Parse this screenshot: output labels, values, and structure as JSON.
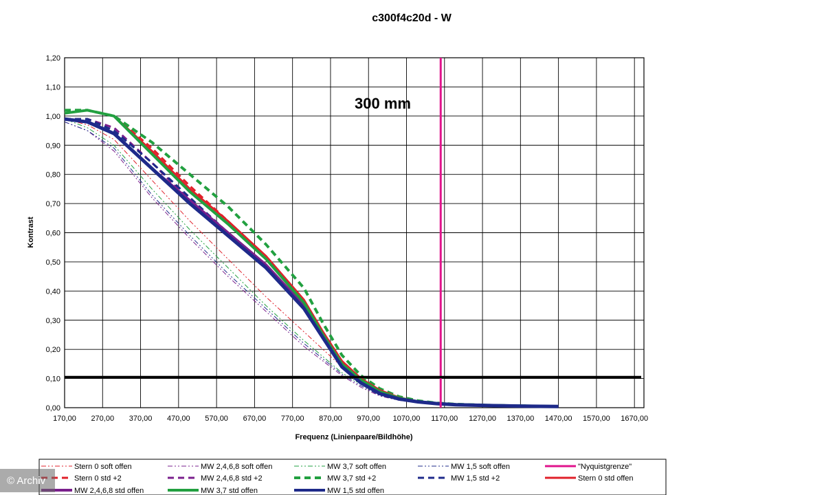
{
  "chart_data": {
    "type": "line",
    "title": "c300f4c20d - W",
    "xlabel": "Frequenz (Linienpaare/Bildhöhe)",
    "ylabel": "Kontrast",
    "xlim": [
      170,
      1695
    ],
    "ylim": [
      0,
      1.2
    ],
    "x_ticks": [
      "170,00",
      "270,00",
      "370,00",
      "470,00",
      "570,00",
      "670,00",
      "770,00",
      "870,00",
      "970,00",
      "1070,00",
      "1170,00",
      "1270,00",
      "1370,00",
      "1470,00",
      "1570,00",
      "1670,00"
    ],
    "y_ticks": [
      "0,00",
      "0,10",
      "0,20",
      "0,30",
      "0,40",
      "0,50",
      "0,60",
      "0,70",
      "0,80",
      "0,90",
      "1,00",
      "1,10",
      "1,20"
    ],
    "grid": true,
    "annotation": "300 mm",
    "legend_position": "bottom",
    "reference_lines": [
      {
        "name": "\"Nyquistgrenze\"",
        "orientation": "vertical",
        "value": 1160,
        "color": "#e0148c"
      },
      {
        "orientation": "horizontal",
        "value": 0.105,
        "color": "#000000"
      }
    ],
    "series": [
      {
        "name": "Stern 0 soft offen",
        "color": "#e0202a",
        "style": "dashdotdot",
        "width": 1,
        "x": [
          170,
          230,
          300,
          400,
          500,
          600,
          700,
          800,
          900,
          950,
          1000,
          1050,
          1100,
          1150,
          1200,
          1300,
          1400,
          1470
        ],
        "y": [
          0.99,
          0.97,
          0.92,
          0.78,
          0.64,
          0.51,
          0.38,
          0.26,
          0.14,
          0.09,
          0.05,
          0.03,
          0.02,
          0.012,
          0.01,
          0.007,
          0.005,
          0.004
        ]
      },
      {
        "name": "MW 2,4,6,8 soft offen",
        "color": "#7a1f8c",
        "style": "dashdotdot",
        "width": 1,
        "x": [
          170,
          230,
          300,
          400,
          500,
          600,
          700,
          800,
          900,
          950,
          1000,
          1050,
          1100,
          1150,
          1200,
          1300,
          1400,
          1470
        ],
        "y": [
          0.98,
          0.95,
          0.88,
          0.72,
          0.58,
          0.45,
          0.33,
          0.21,
          0.11,
          0.07,
          0.04,
          0.025,
          0.016,
          0.011,
          0.009,
          0.006,
          0.005,
          0.004
        ]
      },
      {
        "name": "MW 3,7 soft offen",
        "color": "#22a040",
        "style": "dashdotdot",
        "width": 1,
        "x": [
          170,
          230,
          300,
          400,
          500,
          600,
          700,
          800,
          900,
          950,
          1000,
          1050,
          1100,
          1150,
          1200,
          1300,
          1400,
          1470
        ],
        "y": [
          0.99,
          0.96,
          0.9,
          0.75,
          0.61,
          0.48,
          0.35,
          0.23,
          0.12,
          0.08,
          0.045,
          0.028,
          0.018,
          0.012,
          0.01,
          0.007,
          0.005,
          0.004
        ]
      },
      {
        "name": "MW 1,5 soft offen",
        "color": "#1e2a8a",
        "style": "dashdotdot",
        "width": 1,
        "x": [
          170,
          230,
          300,
          400,
          500,
          600,
          700,
          800,
          900,
          950,
          1000,
          1050,
          1100,
          1150,
          1200,
          1300,
          1400,
          1470
        ],
        "y": [
          0.98,
          0.95,
          0.89,
          0.73,
          0.59,
          0.46,
          0.34,
          0.22,
          0.115,
          0.075,
          0.042,
          0.026,
          0.017,
          0.011,
          0.009,
          0.006,
          0.005,
          0.004
        ]
      },
      {
        "name": "\"Nyquistgrenze\"",
        "color": "#e0148c",
        "style": "solid",
        "width": 3,
        "x": [],
        "y": []
      },
      {
        "name": "Stern 0 std +2",
        "color": "#e0202a",
        "style": "dash",
        "width": 3,
        "x": [
          170,
          230,
          300,
          400,
          500,
          600,
          700,
          800,
          850,
          900,
          950,
          1000,
          1050,
          1100,
          1150,
          1200,
          1300,
          1400,
          1470
        ],
        "y": [
          1.01,
          1.02,
          1.0,
          0.89,
          0.76,
          0.64,
          0.51,
          0.36,
          0.26,
          0.16,
          0.1,
          0.06,
          0.035,
          0.022,
          0.015,
          0.011,
          0.008,
          0.006,
          0.004
        ]
      },
      {
        "name": "MW 2,4,6,8 std +2",
        "color": "#7a1f8c",
        "style": "dash",
        "width": 3,
        "x": [
          170,
          230,
          300,
          400,
          500,
          600,
          700,
          800,
          850,
          900,
          950,
          1000,
          1050,
          1100,
          1150,
          1200,
          1300,
          1400,
          1470
        ],
        "y": [
          0.99,
          0.99,
          0.96,
          0.84,
          0.71,
          0.6,
          0.48,
          0.35,
          0.25,
          0.15,
          0.09,
          0.05,
          0.03,
          0.02,
          0.014,
          0.01,
          0.007,
          0.005,
          0.004
        ]
      },
      {
        "name": "MW 3,7 std +2",
        "color": "#22a040",
        "style": "dash",
        "width": 4,
        "x": [
          170,
          230,
          300,
          400,
          500,
          600,
          700,
          800,
          850,
          900,
          950,
          1000,
          1050,
          1100,
          1150,
          1200,
          1300,
          1400,
          1470
        ],
        "y": [
          1.02,
          1.02,
          1.0,
          0.91,
          0.8,
          0.69,
          0.56,
          0.41,
          0.29,
          0.18,
          0.11,
          0.065,
          0.038,
          0.024,
          0.016,
          0.012,
          0.008,
          0.006,
          0.004
        ]
      },
      {
        "name": "MW 1,5 std +2",
        "color": "#1e2a8a",
        "style": "dash",
        "width": 3,
        "x": [
          170,
          230,
          300,
          400,
          500,
          600,
          700,
          800,
          850,
          900,
          950,
          1000,
          1050,
          1100,
          1150,
          1200,
          1300,
          1400,
          1470
        ],
        "y": [
          0.99,
          0.99,
          0.95,
          0.84,
          0.72,
          0.6,
          0.49,
          0.35,
          0.25,
          0.15,
          0.09,
          0.05,
          0.03,
          0.02,
          0.014,
          0.01,
          0.007,
          0.005,
          0.004
        ]
      },
      {
        "name": "Stern 0 std offen",
        "color": "#e0202a",
        "style": "solid",
        "width": 3,
        "x": [
          170,
          230,
          300,
          400,
          500,
          600,
          700,
          800,
          850,
          900,
          950,
          1000,
          1050,
          1100,
          1150,
          1200,
          1300,
          1400,
          1470
        ],
        "y": [
          1.01,
          1.02,
          1.0,
          0.88,
          0.75,
          0.64,
          0.52,
          0.37,
          0.26,
          0.16,
          0.1,
          0.06,
          0.035,
          0.022,
          0.015,
          0.011,
          0.008,
          0.006,
          0.004
        ]
      },
      {
        "name": "MW 2,4,6,8 std offen",
        "color": "#7a1f8c",
        "style": "solid",
        "width": 4,
        "x": [
          170,
          230,
          300,
          400,
          500,
          600,
          700,
          800,
          850,
          900,
          950,
          1000,
          1050,
          1100,
          1150,
          1200,
          1300,
          1400,
          1470
        ],
        "y": [
          0.99,
          0.98,
          0.94,
          0.82,
          0.71,
          0.6,
          0.49,
          0.35,
          0.24,
          0.14,
          0.085,
          0.048,
          0.03,
          0.02,
          0.014,
          0.01,
          0.007,
          0.005,
          0.004
        ]
      },
      {
        "name": "MW 3,7 std offen",
        "color": "#22a040",
        "style": "solid",
        "width": 4,
        "x": [
          170,
          230,
          300,
          400,
          500,
          600,
          700,
          800,
          850,
          900,
          950,
          1000,
          1050,
          1100,
          1150,
          1200,
          1300,
          1400,
          1470
        ],
        "y": [
          1.01,
          1.02,
          1.0,
          0.87,
          0.74,
          0.63,
          0.51,
          0.36,
          0.25,
          0.15,
          0.095,
          0.055,
          0.033,
          0.021,
          0.015,
          0.011,
          0.008,
          0.006,
          0.004
        ]
      },
      {
        "name": "MW 1,5 std offen",
        "color": "#1e2a8a",
        "style": "solid",
        "width": 5,
        "x": [
          170,
          230,
          300,
          400,
          500,
          600,
          700,
          800,
          850,
          900,
          950,
          1000,
          1050,
          1100,
          1150,
          1200,
          1300,
          1400,
          1470
        ],
        "y": [
          0.99,
          0.98,
          0.94,
          0.82,
          0.7,
          0.59,
          0.48,
          0.34,
          0.24,
          0.14,
          0.085,
          0.048,
          0.03,
          0.02,
          0.014,
          0.01,
          0.007,
          0.005,
          0.004
        ]
      }
    ]
  },
  "watermark": "© Archiv"
}
